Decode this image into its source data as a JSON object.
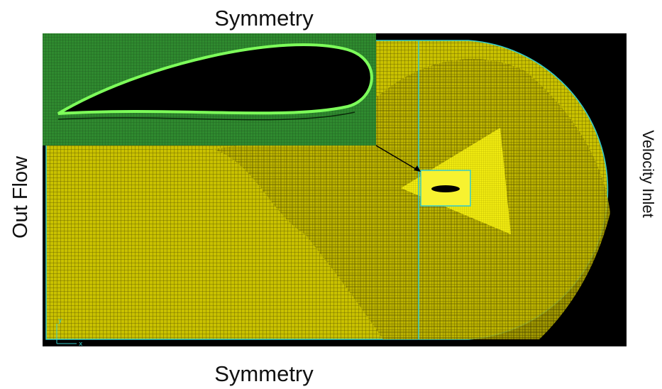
{
  "labels": {
    "top": "Symmetry",
    "bottom": "Symmetry",
    "left": "Out Flow",
    "right": "Velocity Inlet",
    "axis_y": "y",
    "axis_x": "x"
  }
}
